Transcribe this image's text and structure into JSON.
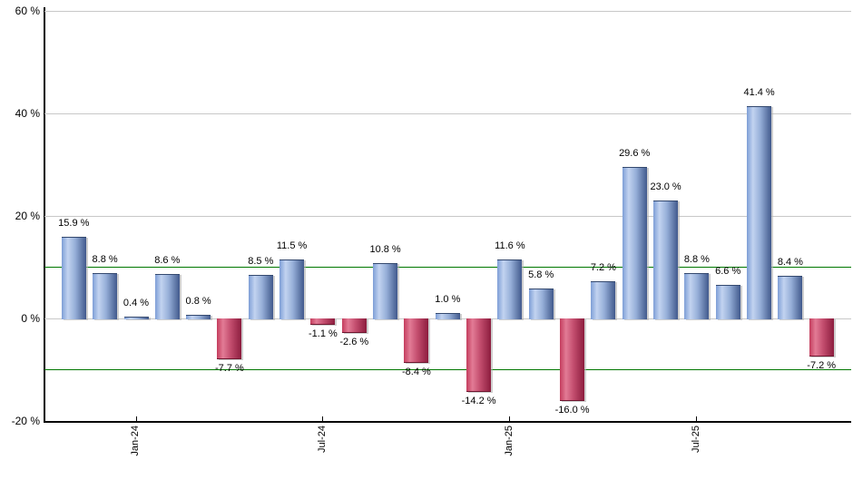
{
  "chart_data": {
    "type": "bar",
    "title": "",
    "xlabel": "",
    "ylabel": "",
    "grid": true,
    "legend_position": "none",
    "values": [
      15.9,
      8.8,
      0.4,
      8.6,
      0.8,
      -7.7,
      8.5,
      11.5,
      -1.1,
      -2.6,
      10.8,
      -8.4,
      1.0,
      -14.2,
      11.6,
      5.8,
      -16.0,
      7.2,
      29.6,
      23.0,
      8.8,
      6.6,
      41.4,
      8.4,
      -7.2
    ],
    "bar_labels": [
      "15.9 %",
      "8.8 %",
      "0.4 %",
      "8.6 %",
      "0.8 %",
      "-7.7 %",
      "8.5 %",
      "11.5 %",
      "-1.1 %",
      "-2.6 %",
      "10.8 %",
      "-8.4 %",
      "1.0 %",
      "-14.2 %",
      "11.6 %",
      "5.8 %",
      "-16.0 %",
      "7.2 %",
      "29.6 %",
      "23.0 %",
      "8.8 %",
      "6.6 %",
      "41.4 %",
      "8.4 %",
      "-7.2 %"
    ],
    "x_ticks": [
      {
        "label": "Jan-24",
        "bar_index": 2
      },
      {
        "label": "Jul-24",
        "bar_index": 8
      },
      {
        "label": "Jan-25",
        "bar_index": 14
      },
      {
        "label": "Jul-25",
        "bar_index": 20
      }
    ],
    "y_axis": {
      "range": [
        -20,
        60
      ],
      "ticks": [
        {
          "value": 60,
          "label": "60 %"
        },
        {
          "value": 40,
          "label": "40 %"
        },
        {
          "value": 20,
          "label": "20 %"
        },
        {
          "value": 0,
          "label": "0 %"
        },
        {
          "value": -20,
          "label": "-20 %"
        }
      ]
    },
    "reference_lines": [
      {
        "value": 10,
        "color": "#007700"
      },
      {
        "value": -10,
        "color": "#007700"
      }
    ],
    "colors": {
      "positive_bar": "#7e9ed6",
      "positive_bar_highlight": "#c2d3f0",
      "positive_bar_shade": "#41598c",
      "negative_bar": "#c43d5e",
      "negative_bar_highlight": "#e27b95",
      "negative_bar_shade": "#8c1d3e",
      "gridline": "#c8c8c8",
      "reference_line": "#007700",
      "axis": "#000000",
      "text": "#000000"
    }
  }
}
